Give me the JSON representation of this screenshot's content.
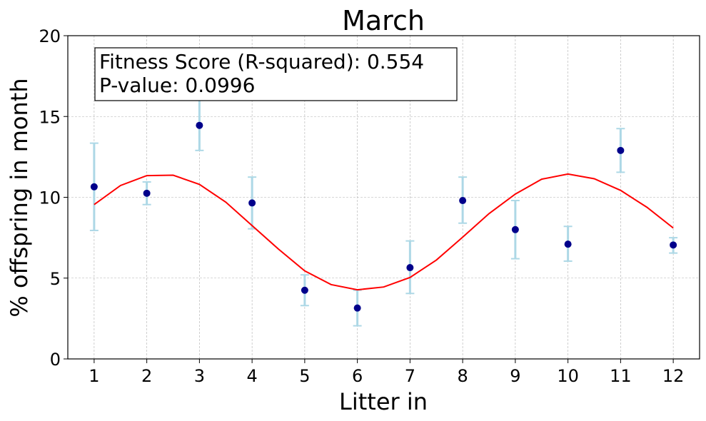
{
  "chart_data": {
    "type": "scatter",
    "title": "March",
    "xlabel": "Litter in",
    "ylabel": "% offspring in month",
    "x_ticks": [
      "1",
      "2",
      "3",
      "4",
      "5",
      "6",
      "7",
      "8",
      "9",
      "10",
      "11",
      "12"
    ],
    "y_ticks": [
      "0",
      "5",
      "10",
      "15",
      "20"
    ],
    "xlim": [
      0.5,
      12.5
    ],
    "ylim": [
      0,
      20
    ],
    "grid": true,
    "series": [
      {
        "kind": "points_with_error",
        "x": [
          1,
          2,
          3,
          4,
          5,
          6,
          7,
          8,
          9,
          10,
          11,
          12
        ],
        "y": [
          10.65,
          10.25,
          14.45,
          9.65,
          4.25,
          3.15,
          5.65,
          9.8,
          8.0,
          7.1,
          12.9,
          7.05
        ],
        "err_low": [
          7.95,
          9.55,
          12.9,
          8.05,
          3.3,
          2.05,
          4.05,
          8.4,
          6.2,
          6.05,
          11.55,
          6.55
        ],
        "err_high": [
          13.35,
          10.95,
          16.0,
          11.25,
          5.2,
          4.25,
          7.3,
          11.25,
          9.8,
          8.2,
          14.25,
          7.5
        ]
      },
      {
        "kind": "fit_curve",
        "x": [
          1.0,
          1.5,
          2.0,
          2.5,
          3.0,
          3.5,
          4.0,
          4.5,
          5.0,
          5.5,
          6.0,
          6.5,
          7.0,
          7.5,
          8.0,
          8.5,
          9.0,
          9.5,
          10.0,
          10.5,
          11.0,
          11.5,
          12.0
        ],
        "y": [
          9.55,
          10.73,
          11.34,
          11.37,
          10.8,
          9.7,
          8.25,
          6.8,
          5.45,
          4.6,
          4.28,
          4.45,
          5.04,
          6.12,
          7.53,
          8.99,
          10.2,
          11.12,
          11.44,
          11.15,
          10.43,
          9.38,
          8.1
        ]
      }
    ],
    "annotation": {
      "line1": "Fitness Score (R-squared): 0.554",
      "line2": "P-value: 0.0996"
    },
    "colors": {
      "points": "#00008b",
      "error_bars": "#add8e6",
      "fit_line": "#ff0000",
      "grid": "#b0b0b0"
    }
  }
}
